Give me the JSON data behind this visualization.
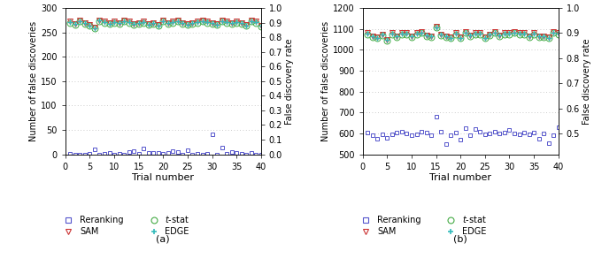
{
  "panel_a": {
    "trials": [
      1,
      2,
      3,
      4,
      5,
      6,
      7,
      8,
      9,
      10,
      11,
      12,
      13,
      14,
      15,
      16,
      17,
      18,
      19,
      20,
      21,
      22,
      23,
      24,
      25,
      26,
      27,
      28,
      29,
      30,
      31,
      32,
      33,
      34,
      35,
      36,
      37,
      38,
      39,
      40
    ],
    "reranking": [
      1,
      0,
      0,
      0,
      1,
      10,
      0,
      1,
      2,
      0,
      1,
      0,
      4,
      6,
      1,
      12,
      2,
      3,
      2,
      1,
      3,
      7,
      4,
      0,
      8,
      0,
      1,
      0,
      1,
      41,
      0,
      14,
      1,
      5,
      3,
      1,
      0,
      2,
      0,
      0
    ],
    "tstat": [
      270,
      265,
      272,
      268,
      263,
      258,
      273,
      270,
      267,
      270,
      268,
      272,
      270,
      266,
      268,
      270,
      265,
      268,
      263,
      272,
      268,
      270,
      272,
      268,
      265,
      268,
      270,
      272,
      270,
      268,
      265,
      272,
      270,
      268,
      270,
      268,
      263,
      272,
      270,
      262
    ],
    "sam": [
      272,
      268,
      274,
      270,
      265,
      260,
      275,
      272,
      269,
      272,
      270,
      274,
      272,
      268,
      270,
      272,
      267,
      270,
      265,
      274,
      270,
      272,
      274,
      270,
      267,
      270,
      272,
      274,
      272,
      270,
      267,
      274,
      272,
      270,
      272,
      270,
      265,
      274,
      272,
      264
    ],
    "edge": [
      271,
      267,
      273,
      269,
      264,
      259,
      274,
      271,
      268,
      271,
      269,
      273,
      271,
      267,
      269,
      271,
      266,
      269,
      264,
      273,
      269,
      271,
      273,
      269,
      266,
      269,
      271,
      273,
      271,
      269,
      266,
      273,
      271,
      269,
      271,
      269,
      264,
      273,
      271,
      263
    ],
    "ylim_left": [
      0,
      300
    ],
    "ylim_right": [
      0,
      1
    ],
    "yticks_left": [
      0,
      50,
      100,
      150,
      200,
      250,
      300
    ],
    "yticks_right": [
      0,
      0.1,
      0.2,
      0.3,
      0.4,
      0.5,
      0.6,
      0.7,
      0.8,
      0.9,
      1.0
    ],
    "ylabel_left": "Number of false discoveries",
    "ylabel_right": "False discovery rate",
    "xlabel": "Trial number",
    "label": "(a)"
  },
  "panel_b": {
    "trials": [
      1,
      2,
      3,
      4,
      5,
      6,
      7,
      8,
      9,
      10,
      11,
      12,
      13,
      14,
      15,
      16,
      17,
      18,
      19,
      20,
      21,
      22,
      23,
      24,
      25,
      26,
      27,
      28,
      29,
      30,
      31,
      32,
      33,
      34,
      35,
      36,
      37,
      38,
      39,
      40
    ],
    "reranking": [
      605,
      590,
      575,
      595,
      580,
      595,
      605,
      610,
      600,
      590,
      595,
      610,
      605,
      590,
      680,
      610,
      550,
      590,
      605,
      570,
      625,
      590,
      620,
      610,
      595,
      600,
      610,
      600,
      605,
      615,
      600,
      595,
      605,
      595,
      605,
      575,
      600,
      555,
      590,
      630
    ],
    "tstat": [
      1075,
      1060,
      1055,
      1070,
      1045,
      1075,
      1060,
      1075,
      1075,
      1060,
      1075,
      1080,
      1065,
      1060,
      1105,
      1070,
      1060,
      1055,
      1075,
      1055,
      1080,
      1065,
      1075,
      1075,
      1055,
      1070,
      1080,
      1065,
      1075,
      1075,
      1080,
      1075,
      1075,
      1060,
      1075,
      1060,
      1060,
      1055,
      1080,
      1075
    ],
    "sam": [
      1080,
      1065,
      1060,
      1075,
      1050,
      1080,
      1065,
      1080,
      1080,
      1065,
      1080,
      1085,
      1070,
      1065,
      1110,
      1075,
      1065,
      1060,
      1080,
      1060,
      1085,
      1070,
      1080,
      1080,
      1060,
      1075,
      1085,
      1070,
      1080,
      1080,
      1085,
      1080,
      1080,
      1065,
      1080,
      1065,
      1065,
      1060,
      1085,
      1080
    ],
    "edge": [
      1078,
      1063,
      1058,
      1073,
      1048,
      1078,
      1063,
      1078,
      1078,
      1063,
      1078,
      1083,
      1068,
      1063,
      1108,
      1073,
      1063,
      1058,
      1078,
      1058,
      1083,
      1068,
      1078,
      1078,
      1058,
      1073,
      1083,
      1068,
      1078,
      1078,
      1083,
      1078,
      1078,
      1063,
      1078,
      1063,
      1063,
      1058,
      1083,
      1078
    ],
    "ylim_left": [
      500,
      1200
    ],
    "ylim_right": [
      0.41667,
      1.0
    ],
    "yticks_left": [
      500,
      600,
      700,
      800,
      900,
      1000,
      1100,
      1200
    ],
    "yticks_right": [
      0.5,
      0.6,
      0.7,
      0.8,
      0.9,
      1.0
    ],
    "ylabel_left": "Number of false discoveries",
    "ylabel_right": "False discovery rate",
    "xlabel": "Trial number",
    "label": "(b)"
  },
  "colors": {
    "reranking": "#5555cc",
    "tstat": "#44aa44",
    "sam": "#cc3333",
    "edge": "#33bbbb"
  },
  "legend": {
    "reranking": "Reranking",
    "tstat": "$t$-stat",
    "sam": "SAM",
    "edge": "EDGE"
  },
  "background": "#ffffff",
  "grid_color": "#bbbbbb"
}
